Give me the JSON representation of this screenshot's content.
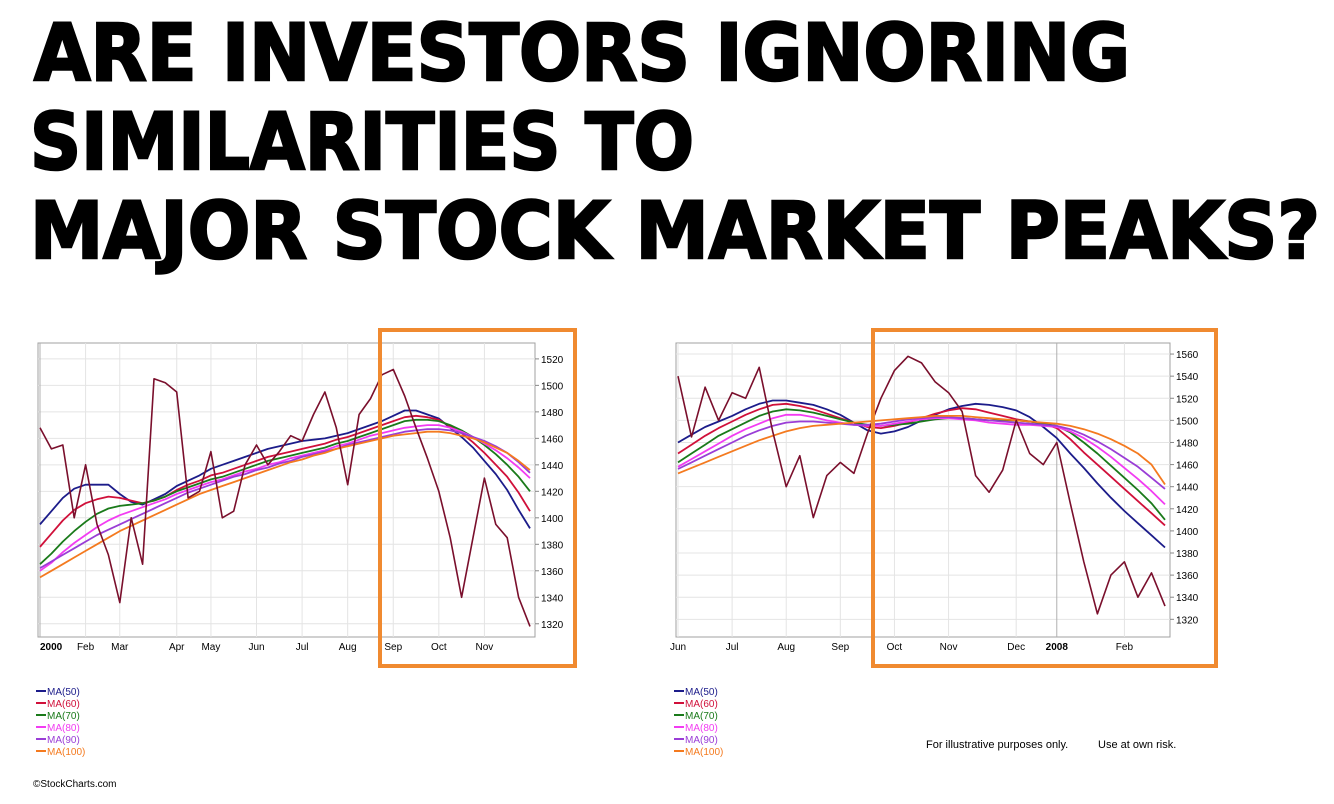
{
  "title": [
    "ARE INVESTORS IGNORING",
    "SIMILARITIES TO",
    "MAJOR STOCK MARKET PEAKS?"
  ],
  "chart_data": [
    {
      "type": "line",
      "grid": true,
      "categories": [
        "2000",
        null,
        null,
        null,
        "Feb",
        null,
        null,
        "Mar",
        null,
        null,
        null,
        null,
        "Apr",
        null,
        null,
        "May",
        null,
        null,
        null,
        "Jun",
        null,
        null,
        null,
        "Jul",
        null,
        null,
        null,
        "Aug",
        null,
        null,
        null,
        "Sep",
        null,
        null,
        null,
        "Oct",
        null,
        null,
        null,
        "Nov",
        null,
        null,
        null,
        null
      ],
      "ylim": [
        1310,
        1532
      ],
      "yticks": [
        1320,
        1340,
        1360,
        1380,
        1400,
        1420,
        1440,
        1460,
        1480,
        1500,
        1520
      ],
      "series": [
        {
          "color": "#7a0f2c",
          "values": [
            1468,
            1452,
            1455,
            1400,
            1440,
            1395,
            1372,
            1336,
            1400,
            1365,
            1505,
            1502,
            1495,
            1415,
            1420,
            1450,
            1400,
            1405,
            1440,
            1455,
            1440,
            1450,
            1462,
            1458,
            1478,
            1495,
            1468,
            1425,
            1478,
            1490,
            1508,
            1512,
            1492,
            1468,
            1445,
            1420,
            1385,
            1340,
            1385,
            1430,
            1395,
            1385,
            1340,
            1318
          ]
        },
        {
          "name": "MA(50)",
          "color": "#1c1c8a",
          "values": [
            1395,
            1405,
            1415,
            1422,
            1425,
            1425,
            1425,
            1418,
            1412,
            1410,
            1414,
            1418,
            1424,
            1428,
            1432,
            1437,
            1440,
            1443,
            1446,
            1449,
            1452,
            1454,
            1456,
            1458,
            1459,
            1460,
            1462,
            1464,
            1467,
            1470,
            1473,
            1477,
            1481,
            1481,
            1478,
            1475,
            1468,
            1461,
            1453,
            1443,
            1433,
            1421,
            1406,
            1392
          ]
        },
        {
          "name": "MA(60)",
          "color": "#d0103a",
          "values": [
            1378,
            1388,
            1398,
            1406,
            1411,
            1414,
            1416,
            1415,
            1413,
            1411,
            1413,
            1416,
            1421,
            1425,
            1428,
            1432,
            1434,
            1437,
            1440,
            1443,
            1446,
            1448,
            1450,
            1452,
            1454,
            1456,
            1459,
            1461,
            1464,
            1467,
            1470,
            1473,
            1476,
            1477,
            1476,
            1474,
            1469,
            1464,
            1457,
            1449,
            1440,
            1431,
            1419,
            1405
          ]
        },
        {
          "name": "MA(70)",
          "color": "#1a7a1a",
          "values": [
            1365,
            1373,
            1382,
            1390,
            1397,
            1403,
            1407,
            1409,
            1410,
            1411,
            1413,
            1416,
            1420,
            1423,
            1426,
            1429,
            1431,
            1434,
            1437,
            1440,
            1443,
            1445,
            1447,
            1449,
            1451,
            1453,
            1456,
            1458,
            1461,
            1464,
            1467,
            1470,
            1473,
            1474,
            1474,
            1473,
            1470,
            1466,
            1461,
            1455,
            1448,
            1440,
            1431,
            1420
          ]
        },
        {
          "name": "MA(80)",
          "color": "#f23cf2",
          "values": [
            1360,
            1366,
            1374,
            1381,
            1387,
            1393,
            1398,
            1402,
            1405,
            1408,
            1411,
            1414,
            1418,
            1421,
            1424,
            1427,
            1429,
            1432,
            1435,
            1437,
            1440,
            1442,
            1445,
            1447,
            1449,
            1451,
            1454,
            1456,
            1459,
            1462,
            1464,
            1466,
            1468,
            1469,
            1470,
            1470,
            1468,
            1465,
            1461,
            1456,
            1451,
            1445,
            1438,
            1430
          ]
        },
        {
          "name": "MA(90)",
          "color": "#9a3dd6",
          "values": [
            1362,
            1367,
            1372,
            1377,
            1382,
            1387,
            1391,
            1395,
            1399,
            1403,
            1407,
            1411,
            1415,
            1419,
            1422,
            1425,
            1428,
            1431,
            1433,
            1436,
            1438,
            1441,
            1443,
            1446,
            1448,
            1450,
            1452,
            1455,
            1457,
            1459,
            1461,
            1463,
            1465,
            1466,
            1467,
            1467,
            1466,
            1464,
            1461,
            1458,
            1454,
            1449,
            1442,
            1434
          ]
        },
        {
          "name": "MA(100)",
          "color": "#f47a1f",
          "values": [
            1355,
            1360,
            1365,
            1370,
            1375,
            1380,
            1385,
            1390,
            1394,
            1398,
            1402,
            1406,
            1410,
            1414,
            1418,
            1421,
            1424,
            1427,
            1430,
            1433,
            1436,
            1439,
            1442,
            1444,
            1447,
            1449,
            1452,
            1454,
            1456,
            1458,
            1460,
            1462,
            1463,
            1464,
            1465,
            1465,
            1464,
            1462,
            1460,
            1457,
            1453,
            1449,
            1443,
            1436
          ]
        }
      ]
    },
    {
      "type": "line",
      "grid": true,
      "categories": [
        "Jun",
        null,
        null,
        null,
        "Jul",
        null,
        null,
        null,
        "Aug",
        null,
        null,
        null,
        "Sep",
        null,
        null,
        null,
        "Oct",
        null,
        null,
        null,
        "Nov",
        null,
        null,
        null,
        null,
        "Dec",
        null,
        null,
        "2008",
        null,
        null,
        null,
        null,
        "Feb",
        null,
        null,
        null
      ],
      "ylim": [
        1304,
        1570
      ],
      "yticks": [
        1320,
        1340,
        1360,
        1380,
        1400,
        1420,
        1440,
        1460,
        1480,
        1500,
        1520,
        1540,
        1560
      ],
      "series": [
        {
          "color": "#7a0f2c",
          "values": [
            1540,
            1485,
            1530,
            1500,
            1525,
            1520,
            1548,
            1490,
            1440,
            1468,
            1412,
            1450,
            1462,
            1452,
            1488,
            1520,
            1545,
            1558,
            1552,
            1535,
            1525,
            1508,
            1450,
            1435,
            1455,
            1500,
            1470,
            1460,
            1480,
            1425,
            1372,
            1325,
            1360,
            1372,
            1340,
            1362,
            1332
          ]
        },
        {
          "name": "MA(50)",
          "color": "#1c1c8a",
          "values": [
            1480,
            1487,
            1494,
            1499,
            1504,
            1510,
            1515,
            1518,
            1518,
            1516,
            1514,
            1510,
            1505,
            1498,
            1491,
            1488,
            1490,
            1494,
            1500,
            1505,
            1510,
            1513,
            1515,
            1514,
            1512,
            1509,
            1503,
            1494,
            1484,
            1470,
            1457,
            1443,
            1430,
            1418,
            1407,
            1396,
            1385
          ]
        },
        {
          "name": "MA(60)",
          "color": "#d0103a",
          "values": [
            1470,
            1478,
            1486,
            1493,
            1499,
            1505,
            1510,
            1514,
            1515,
            1513,
            1510,
            1506,
            1502,
            1498,
            1494,
            1493,
            1495,
            1498,
            1502,
            1506,
            1509,
            1511,
            1510,
            1507,
            1504,
            1501,
            1499,
            1497,
            1493,
            1483,
            1471,
            1460,
            1449,
            1438,
            1427,
            1416,
            1405
          ]
        },
        {
          "name": "MA(70)",
          "color": "#1a7a1a",
          "values": [
            1462,
            1470,
            1478,
            1486,
            1492,
            1498,
            1504,
            1508,
            1510,
            1509,
            1507,
            1504,
            1501,
            1498,
            1496,
            1495,
            1496,
            1497,
            1499,
            1501,
            1502,
            1502,
            1501,
            1500,
            1500,
            1500,
            1499,
            1497,
            1495,
            1489,
            1480,
            1470,
            1459,
            1448,
            1437,
            1425,
            1410
          ]
        },
        {
          "name": "MA(80)",
          "color": "#f23cf2",
          "values": [
            1458,
            1465,
            1472,
            1479,
            1486,
            1492,
            1497,
            1502,
            1505,
            1505,
            1503,
            1500,
            1498,
            1496,
            1495,
            1495,
            1497,
            1499,
            1501,
            1502,
            1502,
            1501,
            1500,
            1498,
            1497,
            1496,
            1496,
            1495,
            1494,
            1490,
            1484,
            1476,
            1467,
            1457,
            1447,
            1436,
            1424
          ]
        },
        {
          "name": "MA(90)",
          "color": "#9a3dd6",
          "values": [
            1456,
            1462,
            1468,
            1474,
            1480,
            1486,
            1491,
            1495,
            1498,
            1499,
            1499,
            1498,
            1497,
            1496,
            1496,
            1497,
            1499,
            1501,
            1502,
            1503,
            1503,
            1502,
            1501,
            1500,
            1499,
            1498,
            1497,
            1496,
            1495,
            1492,
            1487,
            1481,
            1474,
            1466,
            1458,
            1448,
            1438
          ]
        },
        {
          "name": "MA(100)",
          "color": "#f47a1f",
          "values": [
            1452,
            1457,
            1462,
            1467,
            1472,
            1477,
            1482,
            1486,
            1490,
            1493,
            1495,
            1496,
            1497,
            1498,
            1499,
            1500,
            1501,
            1502,
            1503,
            1504,
            1504,
            1504,
            1503,
            1502,
            1501,
            1500,
            1499,
            1498,
            1497,
            1495,
            1492,
            1488,
            1483,
            1477,
            1470,
            1460,
            1442
          ]
        }
      ]
    }
  ],
  "footer": {
    "disclaimer": "For illustrative purposes only.",
    "risk": "Use at own risk.",
    "credit": "©StockCharts.com"
  }
}
